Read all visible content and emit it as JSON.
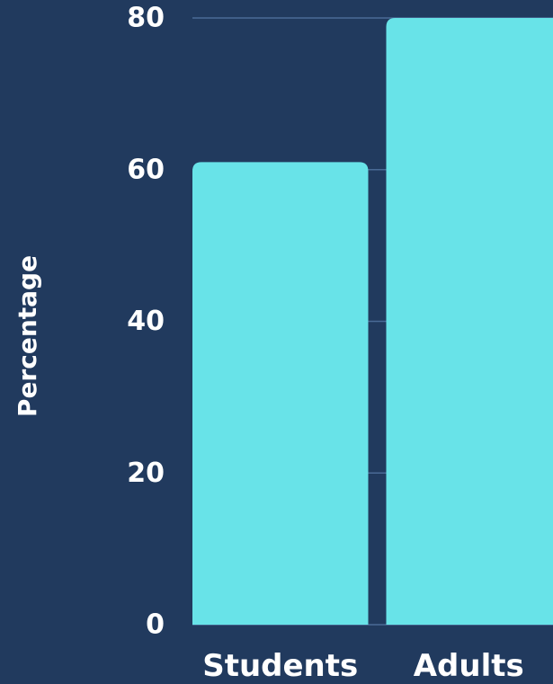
{
  "chart_data": {
    "type": "bar",
    "categories": [
      "Students",
      "Adults"
    ],
    "values": [
      61,
      80
    ],
    "xlabel": "",
    "ylabel": "Percentage",
    "ylim": [
      0,
      80
    ],
    "yticks": [
      0,
      20,
      40,
      60,
      80
    ],
    "grid": true,
    "colors": {
      "background": "#213a5e",
      "bar": "#68e3e8",
      "grid": "#4a6a96",
      "text": "#ffffff"
    }
  }
}
